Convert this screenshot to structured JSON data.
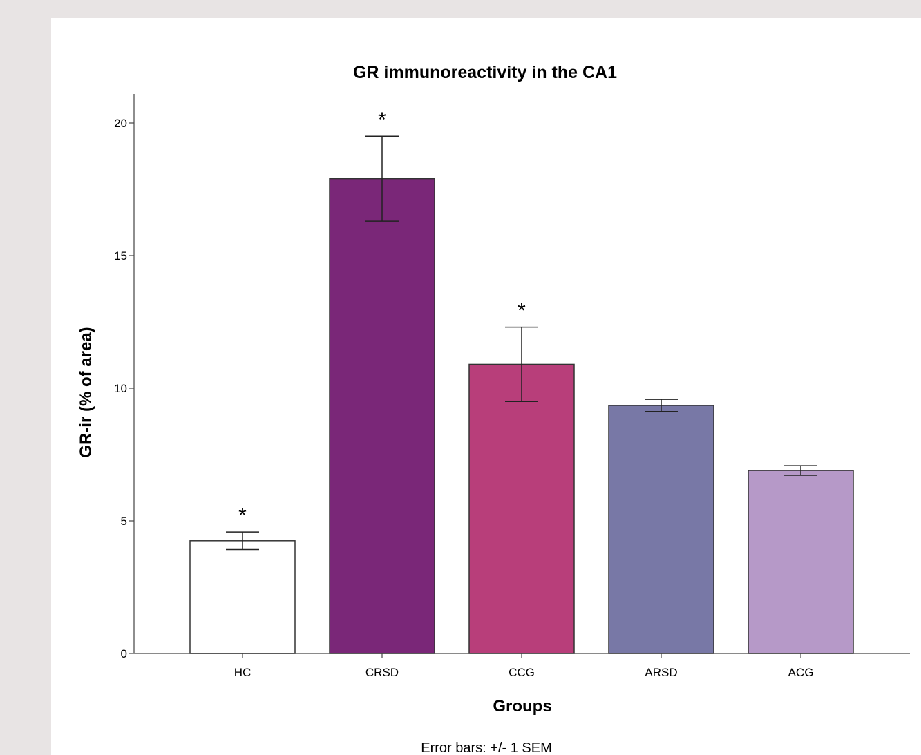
{
  "chart_data": {
    "type": "bar",
    "title": "GR immunoreactivity in the CA1",
    "xlabel": "Groups",
    "ylabel": "GR-ir (% of area)",
    "note": "Error bars: +/- 1 SEM",
    "ylim": [
      0,
      21
    ],
    "yticks": [
      "0",
      "5",
      "10",
      "15",
      "20"
    ],
    "categories": [
      "HC",
      "CRSD",
      "CCG",
      "ARSD",
      "ACG"
    ],
    "values": [
      4.25,
      17.9,
      10.9,
      9.35,
      6.9
    ],
    "error_sem": [
      0.33,
      1.6,
      1.4,
      0.23,
      0.18
    ],
    "significance": [
      "*",
      "*",
      "*",
      "",
      ""
    ],
    "colors": [
      "#ffffff",
      "#7a2778",
      "#b83e7a",
      "#7878a6",
      "#b699c8"
    ],
    "grid": false
  }
}
